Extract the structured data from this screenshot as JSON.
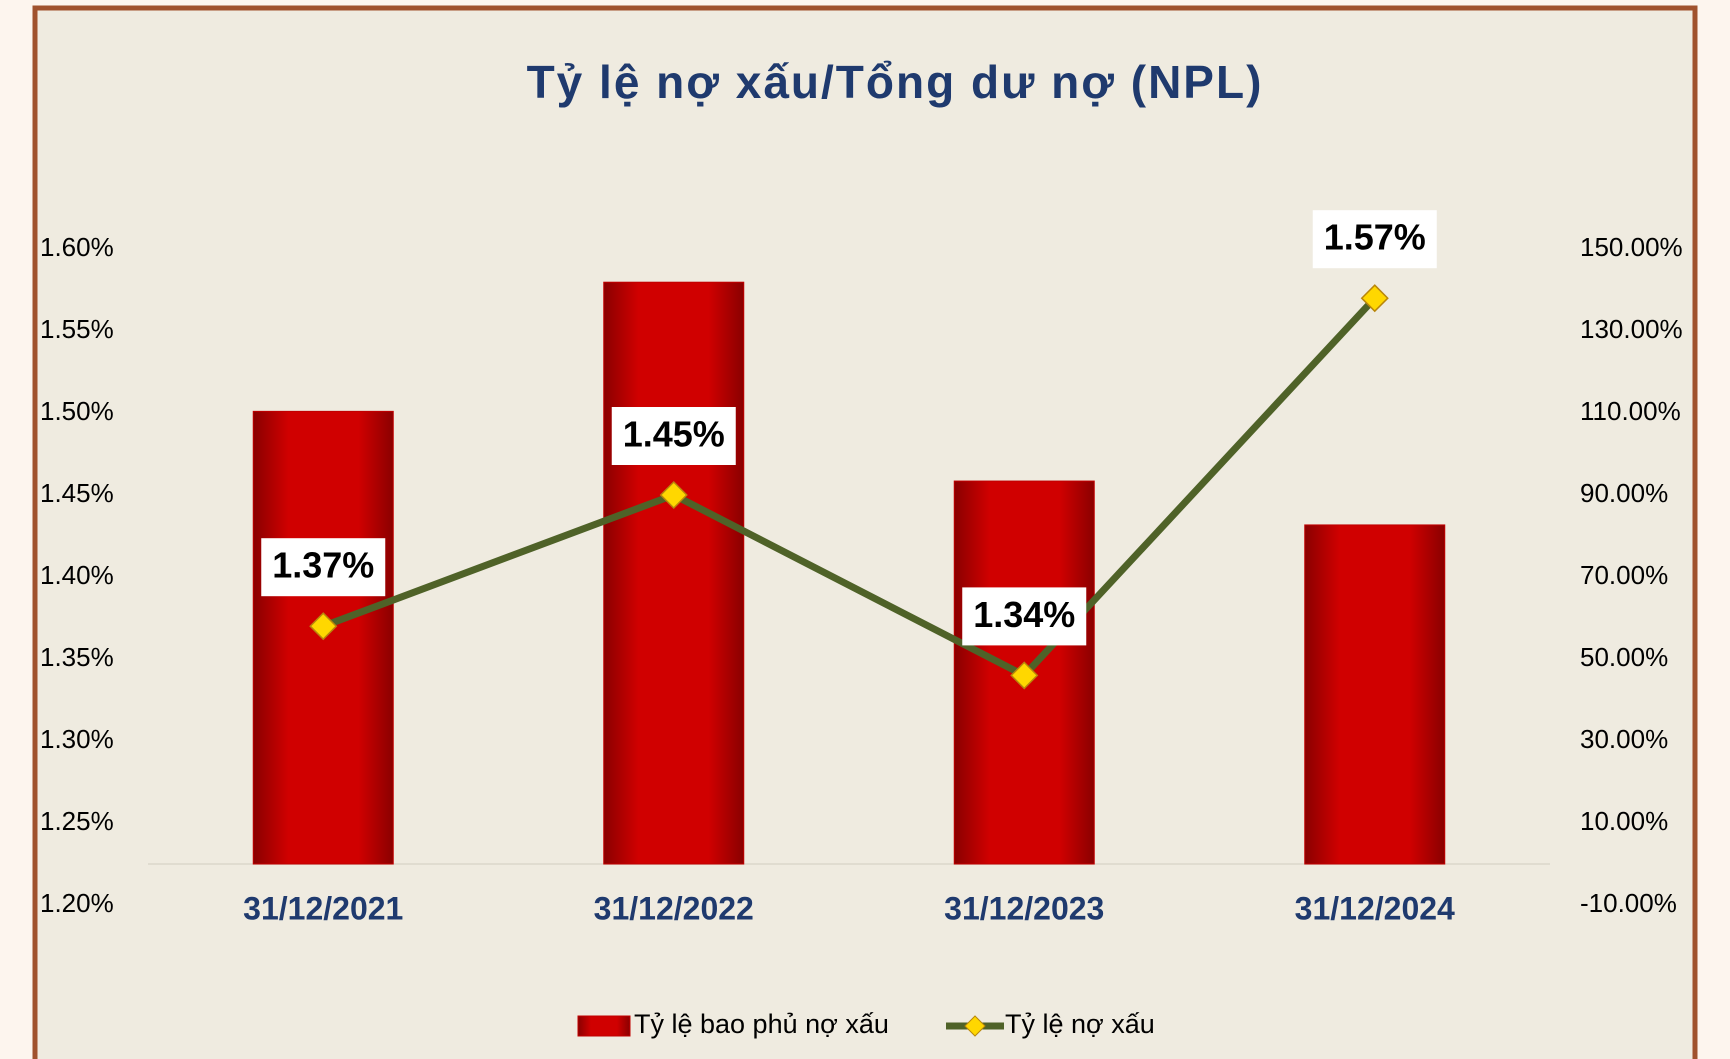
{
  "chart_data": {
    "type": "bar",
    "title": "Tỷ lệ nợ xấu/Tổng dư nợ (NPL)",
    "categories": [
      "31/12/2021",
      "31/12/2022",
      "31/12/2023",
      "31/12/2024"
    ],
    "series": [
      {
        "name": "Tỷ lệ bao phủ nợ xấu",
        "type": "bar",
        "axis": "y2",
        "color": "#c00000",
        "values": [
          110.4,
          141.9,
          93.4,
          82.7
        ]
      },
      {
        "name": "Tỷ lệ nợ xấu",
        "type": "line",
        "axis": "y",
        "color": "#4f6228",
        "marker_color": "#ffd700",
        "values": [
          1.37,
          1.45,
          1.34,
          1.57
        ],
        "value_labels": [
          "1.37%",
          "1.45%",
          "1.34%",
          "1.57%"
        ]
      }
    ],
    "ylim": [
      1.2,
      1.6
    ],
    "yticks": [
      {
        "value": 1.2,
        "label": "1.20%"
      },
      {
        "value": 1.25,
        "label": "1.25%"
      },
      {
        "value": 1.3,
        "label": "1.30%"
      },
      {
        "value": 1.35,
        "label": "1.35%"
      },
      {
        "value": 1.4,
        "label": "1.40%"
      },
      {
        "value": 1.45,
        "label": "1.45%"
      },
      {
        "value": 1.5,
        "label": "1.50%"
      },
      {
        "value": 1.55,
        "label": "1.55%"
      },
      {
        "value": 1.6,
        "label": "1.60%"
      }
    ],
    "y2lim": [
      -10,
      150
    ],
    "y2ticks": [
      {
        "value": -10,
        "label": "-10.00%"
      },
      {
        "value": 10,
        "label": "10.00%"
      },
      {
        "value": 30,
        "label": "30.00%"
      },
      {
        "value": 50,
        "label": "50.00%"
      },
      {
        "value": 70,
        "label": "70.00%"
      },
      {
        "value": 90,
        "label": "90.00%"
      },
      {
        "value": 110,
        "label": "110.00%"
      },
      {
        "value": 130,
        "label": "130.00%"
      },
      {
        "value": 150,
        "label": "150.00%"
      }
    ],
    "grid": false,
    "legend": "bottom"
  }
}
